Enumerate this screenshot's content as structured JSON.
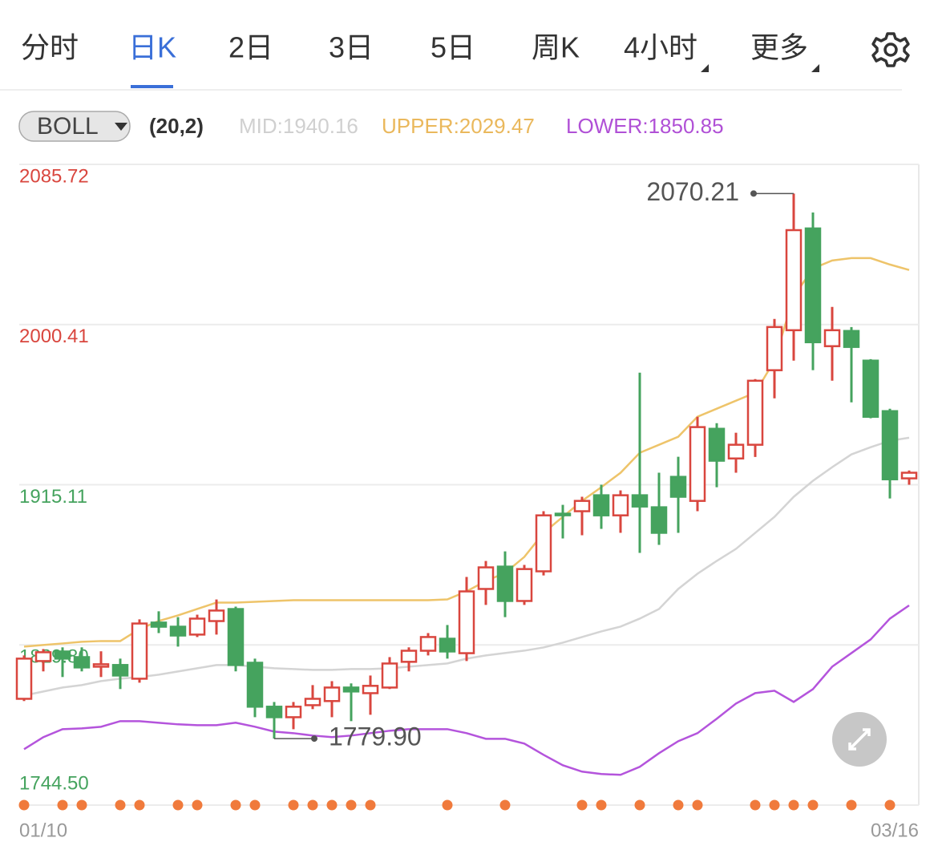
{
  "tabs": [
    "分时",
    "日K",
    "2日",
    "3日",
    "5日",
    "周K",
    "4小时",
    "更多"
  ],
  "active_tab": "日K",
  "indicator": {
    "name": "BOLL",
    "params": "(20,2)",
    "legend": [
      "MID:1940.16",
      "UPPER:2029.47",
      "LOWER:1850.85"
    ]
  },
  "chart_data": {
    "type": "candlestick",
    "categories": [
      "01/10",
      null,
      null,
      null,
      null,
      null,
      null,
      null,
      null,
      null,
      null,
      null,
      null,
      null,
      null,
      null,
      null,
      null,
      null,
      null,
      null,
      null,
      null,
      null,
      null,
      null,
      null,
      null,
      null,
      null,
      null,
      null,
      null,
      null,
      null,
      null,
      null,
      null,
      null,
      null,
      null,
      null,
      null,
      null,
      null,
      null,
      "03/16"
    ],
    "open": [
      1801.1,
      1821.2,
      1826.3,
      1823.3,
      1818.2,
      1819.1,
      1811.8,
      1841.7,
      1839.5,
      1835.3,
      1842.5,
      1848.9,
      1820.3,
      1796.9,
      1791.3,
      1797.7,
      1799.9,
      1807.1,
      1804.1,
      1807.1,
      1820.8,
      1826.7,
      1833.1,
      1825.4,
      1859.6,
      1871.5,
      1853.2,
      1869.0,
      1899.7,
      1901.0,
      1909.5,
      1898.8,
      1909.5,
      1903.1,
      1919.3,
      1906.5,
      1944.9,
      1929.1,
      1936.4,
      1976.1,
      1997.4,
      2051.6,
      1988.9,
      1997.0,
      1981.2,
      1954.3,
      1918.5
    ],
    "high": [
      1824.2,
      1827.6,
      1828.5,
      1828.5,
      1826.4,
      1822.5,
      1843.4,
      1847.7,
      1844.6,
      1845.9,
      1854.0,
      1850.2,
      1822.5,
      1799.4,
      1799.4,
      1808.4,
      1810.5,
      1809.3,
      1813.5,
      1823.3,
      1828.5,
      1836.1,
      1840.4,
      1866.0,
      1874.5,
      1879.6,
      1872.4,
      1901.0,
      1904.4,
      1908.7,
      1915.1,
      1912.1,
      1974.8,
      1921.5,
      1930.0,
      1951.3,
      1947.9,
      1942.8,
      1971.4,
      2003.4,
      2070.21,
      2060.1,
      2009.8,
      1999.1,
      1982.0,
      1955.6,
      1922.7
    ],
    "low": [
      1799.9,
      1815.7,
      1812.7,
      1815.7,
      1812.7,
      1806.3,
      1809.7,
      1836.1,
      1828.9,
      1834.0,
      1835.3,
      1815.7,
      1791.3,
      1779.9,
      1784.9,
      1795.6,
      1791.3,
      1789.2,
      1792.6,
      1806.3,
      1815.7,
      1824.2,
      1822.5,
      1821.2,
      1851.1,
      1844.6,
      1851.1,
      1866.8,
      1886.5,
      1888.2,
      1891.6,
      1889.5,
      1878.8,
      1883.1,
      1889.5,
      1901.0,
      1913.8,
      1921.5,
      1929.9,
      1961.1,
      1981.2,
      1976.1,
      1970.5,
      1959.0,
      1950.5,
      1907.8,
      1915.1
    ],
    "close": [
      1822.5,
      1825.9,
      1822.5,
      1817.8,
      1819.5,
      1813.5,
      1841.2,
      1839.5,
      1834.8,
      1843.8,
      1848.1,
      1819.1,
      1796.9,
      1791.3,
      1796.9,
      1801.1,
      1807.1,
      1805.0,
      1808.0,
      1819.9,
      1826.7,
      1834.0,
      1826.3,
      1858.3,
      1871.1,
      1853.2,
      1870.2,
      1898.8,
      1899.3,
      1906.5,
      1898.8,
      1909.5,
      1903.5,
      1889.5,
      1908.7,
      1945.8,
      1927.9,
      1936.4,
      1970.5,
      1999.1,
      2050.7,
      1991.0,
      1997.4,
      1988.5,
      1951.3,
      1918.0,
      1921.5
    ],
    "up_color": "#d9463e",
    "down_color": "#45a35e",
    "series": [
      {
        "name": "UPPER",
        "color": "#eec46a",
        "values": [
          1828.88,
          1829.73,
          1830.58,
          1831.44,
          1831.86,
          1831.86,
          1838.26,
          1842.53,
          1845.52,
          1848.93,
          1852.34,
          1852.34,
          1852.77,
          1853.2,
          1853.62,
          1853.62,
          1853.62,
          1853.62,
          1853.62,
          1853.62,
          1853.62,
          1853.62,
          1854.05,
          1858.32,
          1863.86,
          1868.13,
          1876.66,
          1889.46,
          1897.99,
          1906.53,
          1913.78,
          1921.46,
          1932.13,
          1936.39,
          1940.66,
          1951.33,
          1955.59,
          1959.86,
          1964.12,
          1981.19,
          2015.32,
          2030.26,
          2034.52,
          2035.8,
          2035.8,
          2032.39,
          2029.47
        ]
      },
      {
        "name": "MID",
        "color": "#d4d4d4",
        "values": [
          1802.85,
          1804.98,
          1807.12,
          1808.4,
          1810.53,
          1811.81,
          1812.66,
          1813.94,
          1815.65,
          1817.36,
          1819.06,
          1819.06,
          1818.21,
          1817.36,
          1816.93,
          1816.5,
          1816.5,
          1816.93,
          1816.93,
          1817.36,
          1818.21,
          1819.06,
          1819.92,
          1822.48,
          1824.18,
          1825.46,
          1826.74,
          1828.45,
          1831.01,
          1834.0,
          1836.98,
          1839.54,
          1843.81,
          1848.93,
          1859.6,
          1867.7,
          1874.53,
          1880.93,
          1889.46,
          1897.99,
          1908.66,
          1917.19,
          1924.45,
          1931.27,
          1935.11,
          1938.53,
          1940.16
        ]
      },
      {
        "name": "LOWER",
        "color": "#b454dc",
        "values": [
          1774.27,
          1780.67,
          1784.93,
          1785.36,
          1786.21,
          1789.2,
          1789.2,
          1788.35,
          1787.5,
          1787.06,
          1787.06,
          1788.35,
          1786.21,
          1783.65,
          1782.8,
          1781.52,
          1780.67,
          1781.52,
          1782.8,
          1784.08,
          1784.93,
          1784.93,
          1784.93,
          1782.8,
          1779.81,
          1779.81,
          1777.25,
          1771.28,
          1765.73,
          1762.32,
          1761.04,
          1760.61,
          1764.88,
          1772.13,
          1778.53,
          1782.8,
          1790.48,
          1798.58,
          1804.13,
          1805.41,
          1799.44,
          1806.26,
          1818.21,
          1825.46,
          1832.72,
          1843.81,
          1850.85
        ]
      }
    ],
    "ylim": [
      1744.5,
      2085.72
    ],
    "yticks": [
      2085.72,
      2000.41,
      1915.11,
      {
        "value": 1829.8,
        "label": "1829.80"
      },
      {
        "value": 1744.5,
        "label": "1744.50"
      }
    ],
    "ytick_colors": [
      "#d9463e",
      "#d9463e",
      "#45a35e",
      "#45a35e",
      "#45a35e"
    ],
    "grid": true,
    "annotations": [
      {
        "label": "2070.21",
        "value": 2070.21,
        "index": 40,
        "side": "left"
      },
      {
        "label": "1779.90",
        "value": 1779.9,
        "index": 13,
        "side": "right"
      }
    ],
    "signals": {
      "color": "#f07a3c",
      "indices": [
        0,
        2,
        3,
        5,
        6,
        8,
        9,
        11,
        12,
        14,
        15,
        16,
        17,
        18,
        22,
        25,
        29,
        30,
        32,
        34,
        35,
        38,
        39,
        40,
        41,
        43,
        45
      ]
    }
  }
}
